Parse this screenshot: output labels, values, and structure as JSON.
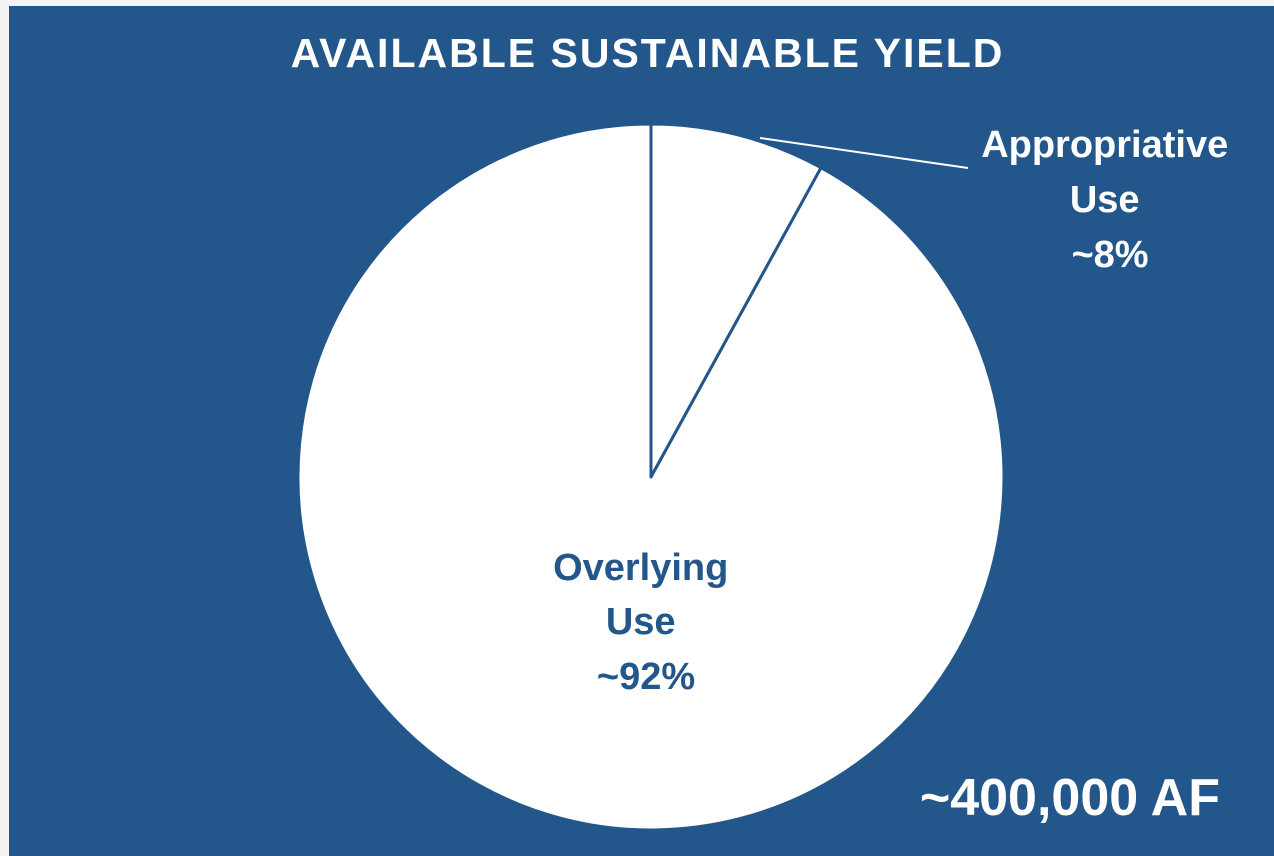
{
  "chart_data": {
    "type": "pie",
    "title": "AVAILABLE SUSTAINABLE YIELD",
    "total_label": "~400,000 AF",
    "slices": [
      {
        "name": "Appropriative Use",
        "value": 8,
        "label_lines": [
          "Appropriative",
          "Use",
          "~8%"
        ]
      },
      {
        "name": "Overlying Use",
        "value": 92,
        "label_lines": [
          "Overlying",
          "Use",
          "~92%"
        ]
      }
    ],
    "start_angle_deg": 0,
    "direction": "clockwise",
    "colors": {
      "background": "#23578b",
      "slice_fill": "#ffffff",
      "slice_stroke": "#23578b",
      "title_text": "#ffffff",
      "outside_label_text": "#ffffff",
      "inside_label_text": "#23578b"
    }
  }
}
